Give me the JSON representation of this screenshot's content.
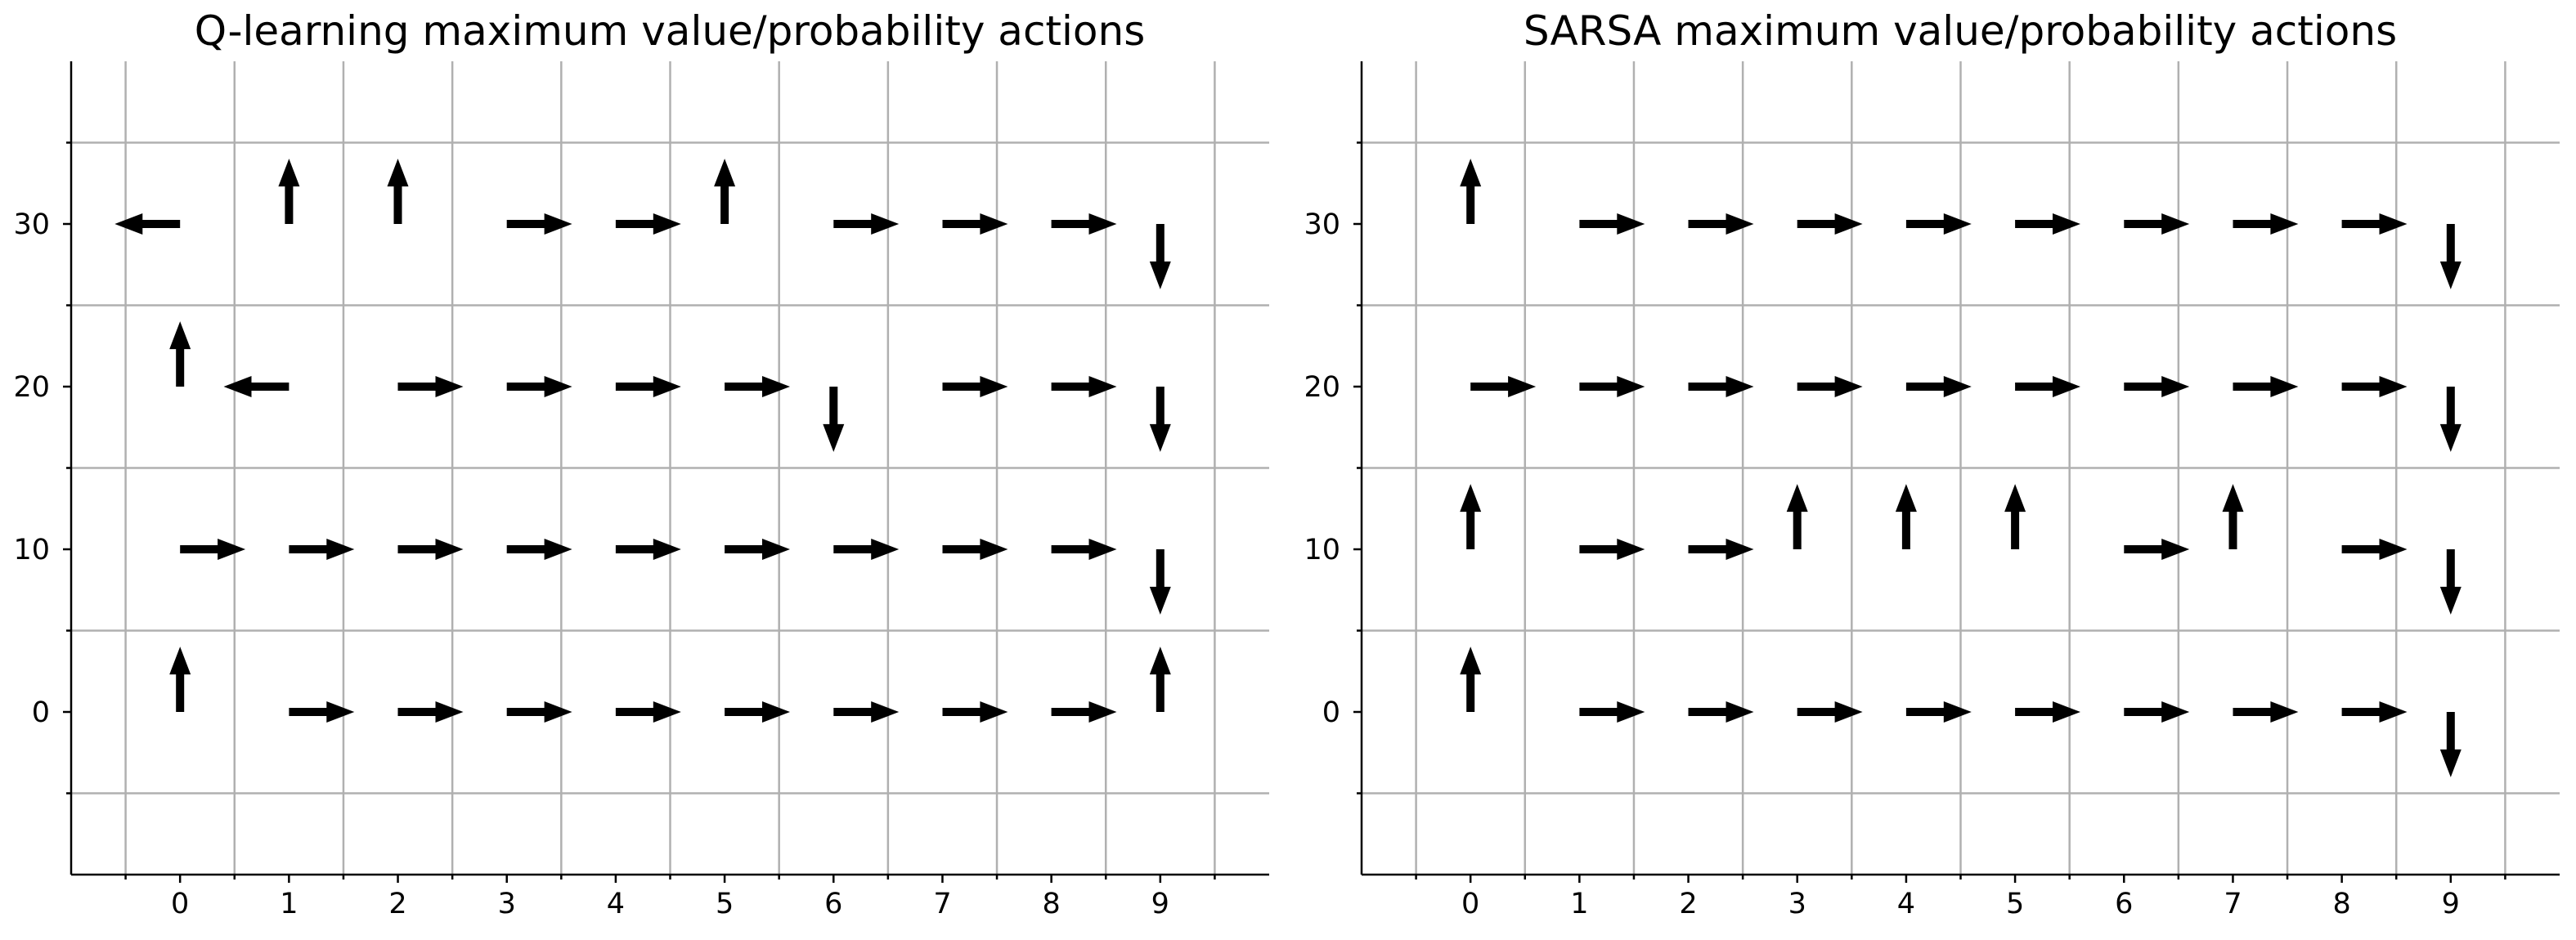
{
  "chart_data": [
    {
      "type": "quiver",
      "title": "Q-learning maximum value/probability actions",
      "xlabel": "",
      "ylabel": "",
      "x_ticks": [
        "0",
        "1",
        "2",
        "3",
        "4",
        "5",
        "6",
        "7",
        "8",
        "9"
      ],
      "y_ticks": [
        "0",
        "10",
        "20",
        "30"
      ],
      "xlim": [
        -1,
        10
      ],
      "ylim": [
        -10,
        40
      ],
      "grid": true,
      "cells": [
        {
          "x": 0,
          "y": 30,
          "dir": "left"
        },
        {
          "x": 1,
          "y": 30,
          "dir": "up"
        },
        {
          "x": 2,
          "y": 30,
          "dir": "up"
        },
        {
          "x": 3,
          "y": 30,
          "dir": "right"
        },
        {
          "x": 4,
          "y": 30,
          "dir": "right"
        },
        {
          "x": 5,
          "y": 30,
          "dir": "up"
        },
        {
          "x": 6,
          "y": 30,
          "dir": "right"
        },
        {
          "x": 7,
          "y": 30,
          "dir": "right"
        },
        {
          "x": 8,
          "y": 30,
          "dir": "right"
        },
        {
          "x": 9,
          "y": 30,
          "dir": "down"
        },
        {
          "x": 0,
          "y": 20,
          "dir": "up"
        },
        {
          "x": 1,
          "y": 20,
          "dir": "left"
        },
        {
          "x": 2,
          "y": 20,
          "dir": "right"
        },
        {
          "x": 3,
          "y": 20,
          "dir": "right"
        },
        {
          "x": 4,
          "y": 20,
          "dir": "right"
        },
        {
          "x": 5,
          "y": 20,
          "dir": "right"
        },
        {
          "x": 6,
          "y": 20,
          "dir": "down"
        },
        {
          "x": 7,
          "y": 20,
          "dir": "right"
        },
        {
          "x": 8,
          "y": 20,
          "dir": "right"
        },
        {
          "x": 9,
          "y": 20,
          "dir": "down"
        },
        {
          "x": 0,
          "y": 10,
          "dir": "right"
        },
        {
          "x": 1,
          "y": 10,
          "dir": "right"
        },
        {
          "x": 2,
          "y": 10,
          "dir": "right"
        },
        {
          "x": 3,
          "y": 10,
          "dir": "right"
        },
        {
          "x": 4,
          "y": 10,
          "dir": "right"
        },
        {
          "x": 5,
          "y": 10,
          "dir": "right"
        },
        {
          "x": 6,
          "y": 10,
          "dir": "right"
        },
        {
          "x": 7,
          "y": 10,
          "dir": "right"
        },
        {
          "x": 8,
          "y": 10,
          "dir": "right"
        },
        {
          "x": 9,
          "y": 10,
          "dir": "down"
        },
        {
          "x": 0,
          "y": 0,
          "dir": "up"
        },
        {
          "x": 1,
          "y": 0,
          "dir": "right"
        },
        {
          "x": 2,
          "y": 0,
          "dir": "right"
        },
        {
          "x": 3,
          "y": 0,
          "dir": "right"
        },
        {
          "x": 4,
          "y": 0,
          "dir": "right"
        },
        {
          "x": 5,
          "y": 0,
          "dir": "right"
        },
        {
          "x": 6,
          "y": 0,
          "dir": "right"
        },
        {
          "x": 7,
          "y": 0,
          "dir": "right"
        },
        {
          "x": 8,
          "y": 0,
          "dir": "right"
        },
        {
          "x": 9,
          "y": 0,
          "dir": "up"
        }
      ]
    },
    {
      "type": "quiver",
      "title": "SARSA maximum value/probability actions",
      "xlabel": "",
      "ylabel": "",
      "x_ticks": [
        "0",
        "1",
        "2",
        "3",
        "4",
        "5",
        "6",
        "7",
        "8",
        "9"
      ],
      "y_ticks": [
        "0",
        "10",
        "20",
        "30"
      ],
      "xlim": [
        -1,
        10
      ],
      "ylim": [
        -10,
        40
      ],
      "grid": true,
      "cells": [
        {
          "x": 0,
          "y": 30,
          "dir": "up"
        },
        {
          "x": 1,
          "y": 30,
          "dir": "right"
        },
        {
          "x": 2,
          "y": 30,
          "dir": "right"
        },
        {
          "x": 3,
          "y": 30,
          "dir": "right"
        },
        {
          "x": 4,
          "y": 30,
          "dir": "right"
        },
        {
          "x": 5,
          "y": 30,
          "dir": "right"
        },
        {
          "x": 6,
          "y": 30,
          "dir": "right"
        },
        {
          "x": 7,
          "y": 30,
          "dir": "right"
        },
        {
          "x": 8,
          "y": 30,
          "dir": "right"
        },
        {
          "x": 9,
          "y": 30,
          "dir": "down"
        },
        {
          "x": 0,
          "y": 20,
          "dir": "right"
        },
        {
          "x": 1,
          "y": 20,
          "dir": "right"
        },
        {
          "x": 2,
          "y": 20,
          "dir": "right"
        },
        {
          "x": 3,
          "y": 20,
          "dir": "right"
        },
        {
          "x": 4,
          "y": 20,
          "dir": "right"
        },
        {
          "x": 5,
          "y": 20,
          "dir": "right"
        },
        {
          "x": 6,
          "y": 20,
          "dir": "right"
        },
        {
          "x": 7,
          "y": 20,
          "dir": "right"
        },
        {
          "x": 8,
          "y": 20,
          "dir": "right"
        },
        {
          "x": 9,
          "y": 20,
          "dir": "down"
        },
        {
          "x": 0,
          "y": 10,
          "dir": "up"
        },
        {
          "x": 1,
          "y": 10,
          "dir": "right"
        },
        {
          "x": 2,
          "y": 10,
          "dir": "right"
        },
        {
          "x": 3,
          "y": 10,
          "dir": "up"
        },
        {
          "x": 4,
          "y": 10,
          "dir": "up"
        },
        {
          "x": 5,
          "y": 10,
          "dir": "up"
        },
        {
          "x": 6,
          "y": 10,
          "dir": "right"
        },
        {
          "x": 7,
          "y": 10,
          "dir": "up"
        },
        {
          "x": 8,
          "y": 10,
          "dir": "right"
        },
        {
          "x": 9,
          "y": 10,
          "dir": "down"
        },
        {
          "x": 0,
          "y": 0,
          "dir": "up"
        },
        {
          "x": 1,
          "y": 0,
          "dir": "right"
        },
        {
          "x": 2,
          "y": 0,
          "dir": "right"
        },
        {
          "x": 3,
          "y": 0,
          "dir": "right"
        },
        {
          "x": 4,
          "y": 0,
          "dir": "right"
        },
        {
          "x": 5,
          "y": 0,
          "dir": "right"
        },
        {
          "x": 6,
          "y": 0,
          "dir": "right"
        },
        {
          "x": 7,
          "y": 0,
          "dir": "right"
        },
        {
          "x": 8,
          "y": 0,
          "dir": "right"
        },
        {
          "x": 9,
          "y": 0,
          "dir": "down"
        }
      ]
    }
  ]
}
